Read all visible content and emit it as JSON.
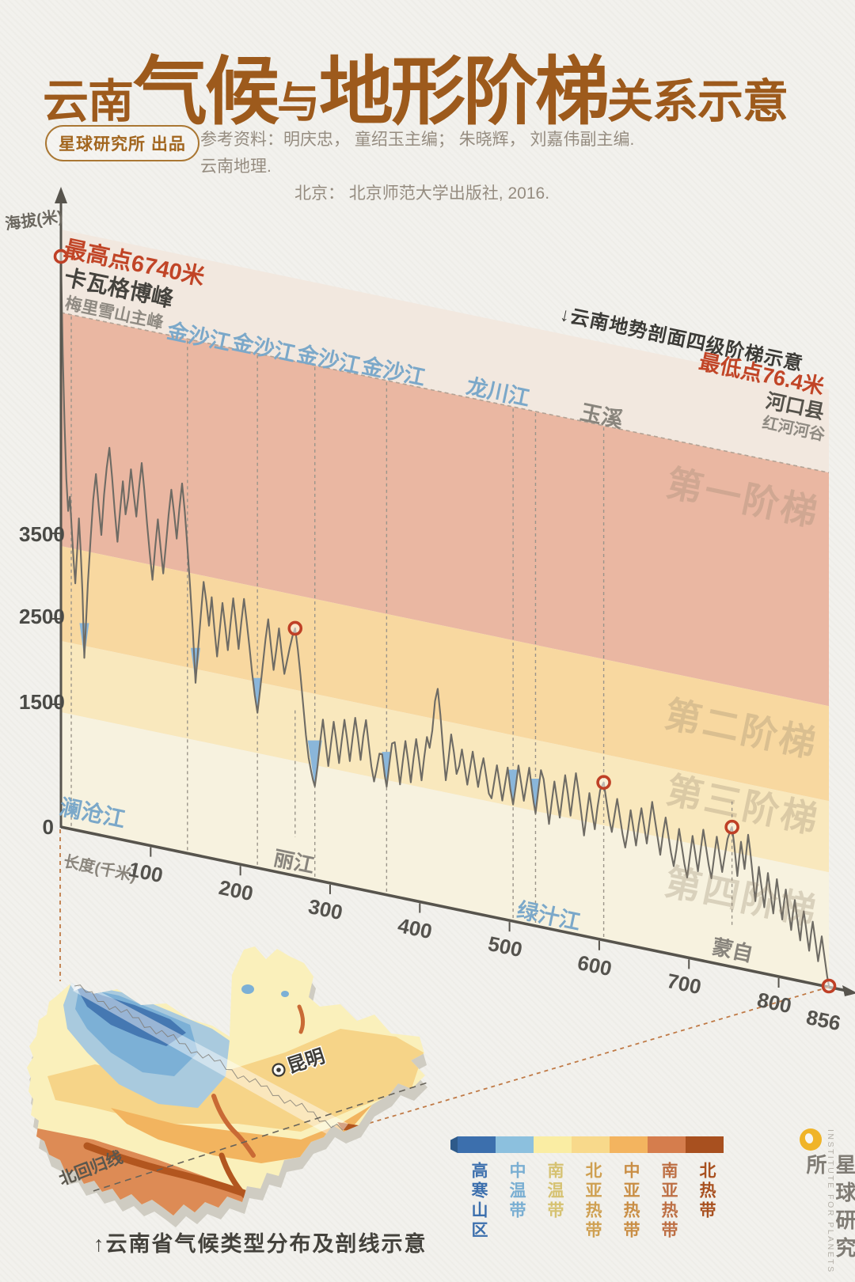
{
  "header": {
    "title_prefix": "云南",
    "title_big1": "气候",
    "title_mid": "与",
    "title_big2": "地形阶梯",
    "title_suffix": "关系示意",
    "badge": "星球研究所 出品",
    "ref_line1": "参考资料：明庆忠， 童绍玉主编； 朱晓辉， 刘嘉伟副主编. 云南地理.",
    "ref_line2": "北京： 北京师范大学出版社, 2016."
  },
  "chart": {
    "y_axis_label": "海拔(米)",
    "x_axis_label": "长度(千米)",
    "y_ticks": [
      "3500",
      "2500",
      "1500",
      "0"
    ],
    "x_ticks": [
      "100",
      "200",
      "300",
      "400",
      "500",
      "600",
      "700",
      "800",
      "856"
    ],
    "annotation": "↓云南地势剖面四级阶梯示意",
    "highest": {
      "value": "最高点6740米",
      "peak": "卡瓦格博峰",
      "sub": "梅里雪山主峰"
    },
    "lowest": {
      "value": "最低点76.4米",
      "place": "河口县",
      "sub": "红河河谷"
    },
    "steps": [
      "第一阶梯",
      "第二阶梯",
      "第三阶梯",
      "第四阶梯"
    ],
    "top_labels": [
      "金沙江",
      "金沙江",
      "金沙江",
      "金沙江",
      "龙川江",
      "玉溪"
    ],
    "inner_labels": [
      "澜沧江",
      "丽江",
      "绿汁江",
      "蒙自"
    ],
    "band_colors": {
      "strip": "#f2e8df",
      "step1": "#eab7a2",
      "step2": "#f8d8a0",
      "step3": "#f9e8bd",
      "step4": "#f7f2df"
    }
  },
  "chart_data": {
    "type": "line",
    "title": "云南地势剖面四级阶梯示意",
    "xlabel": "长度(千米)",
    "ylabel": "海拔(米)",
    "x_range": [
      0,
      856
    ],
    "y_tick_values": [
      0,
      1500,
      2500,
      3500
    ],
    "grid": false,
    "highest_point": {
      "km": 0,
      "elevation_m": 6740,
      "name": "卡瓦格博峰",
      "sub": "梅里雪山主峰"
    },
    "lowest_point": {
      "km": 856,
      "elevation_m": 76.4,
      "name": "河口县",
      "sub": "红河河谷"
    },
    "dashed_guides_km": [
      11.5,
      141,
      219,
      283,
      363,
      504,
      529,
      605
    ],
    "river_gorges": [
      {
        "name": "澜沧江",
        "km": 26,
        "elevation_m": 2100
      },
      {
        "name": "金沙江",
        "km": 150,
        "elevation_m": 2080
      },
      {
        "name": "金沙江",
        "km": 219,
        "elevation_m": 1880
      },
      {
        "name": "金沙江",
        "km": 283,
        "elevation_m": 1160,
        "big": true
      },
      {
        "name": "金沙江",
        "km": 363,
        "elevation_m": 1330
      },
      {
        "name": "龙川江",
        "km": 504,
        "elevation_m": 1430
      },
      {
        "name": "绿汁江",
        "km": 529,
        "elevation_m": 1380
      }
    ],
    "cities": [
      {
        "name": "丽江",
        "km": 261
      },
      {
        "name": "玉溪",
        "km": 605
      },
      {
        "name": "蒙自",
        "km": 748
      }
    ],
    "step_markers": [
      {
        "km": 0,
        "elevation_m": 6740
      },
      {
        "km": 261,
        "elevation_m": 2960
      },
      {
        "km": 605,
        "elevation_m": 1910
      },
      {
        "km": 748,
        "elevation_m": 1700
      },
      {
        "km": 856,
        "elevation_m": 76.4
      }
    ],
    "elevation_profile_km_m": [
      0,
      6740,
      2,
      5600,
      4,
      4800,
      6,
      4150,
      8,
      3780,
      10,
      3950,
      12,
      3580,
      14,
      3220,
      16,
      2950,
      18,
      3320,
      20,
      3720,
      22,
      3350,
      24,
      2850,
      26,
      2100,
      28,
      2520,
      30,
      2980,
      33,
      3500,
      36,
      3980,
      39,
      4280,
      42,
      3920,
      45,
      3580,
      48,
      4050,
      51,
      4380,
      54,
      4620,
      57,
      4280,
      60,
      3880,
      63,
      3540,
      66,
      3920,
      69,
      4260,
      72,
      3880,
      75,
      4080,
      78,
      4420,
      81,
      4140,
      84,
      3880,
      87,
      4220,
      90,
      4520,
      93,
      4200,
      96,
      3820,
      99,
      3480,
      102,
      3180,
      105,
      3560,
      108,
      3900,
      111,
      3580,
      114,
      3280,
      117,
      3620,
      120,
      3980,
      123,
      4280,
      126,
      4020,
      129,
      3720,
      132,
      4080,
      135,
      4380,
      138,
      4060,
      141,
      3640,
      144,
      3180,
      147,
      2680,
      150,
      2080,
      153,
      2500,
      156,
      2900,
      159,
      3280,
      162,
      3060,
      165,
      2780,
      168,
      3120,
      171,
      2760,
      174,
      2440,
      177,
      2760,
      180,
      3080,
      183,
      2820,
      186,
      2540,
      189,
      2860,
      192,
      3160,
      195,
      2880,
      198,
      2580,
      201,
      2900,
      204,
      3180,
      207,
      2920,
      210,
      2640,
      213,
      2340,
      216,
      2080,
      219,
      1880,
      222,
      2160,
      225,
      2460,
      228,
      2760,
      231,
      3000,
      234,
      2700,
      237,
      2420,
      240,
      2660,
      243,
      2920,
      246,
      2640,
      249,
      2400,
      252,
      2560,
      255,
      2720,
      258,
      2860,
      261,
      2960,
      264,
      2720,
      267,
      2420,
      270,
      2080,
      273,
      1740,
      276,
      1480,
      279,
      1320,
      281,
      1230,
      283,
      1160,
      286,
      1400,
      289,
      1700,
      292,
      1960,
      295,
      1690,
      298,
      1430,
      301,
      1700,
      304,
      1960,
      307,
      1740,
      310,
      1490,
      313,
      1760,
      316,
      2010,
      319,
      1790,
      322,
      1540,
      325,
      1810,
      328,
      2060,
      331,
      1840,
      334,
      1580,
      337,
      1860,
      340,
      2060,
      343,
      1790,
      346,
      1530,
      349,
      1360,
      352,
      1520,
      355,
      1700,
      358,
      1700,
      361,
      1450,
      363,
      1330,
      366,
      1600,
      369,
      1850,
      372,
      1870,
      375,
      1640,
      378,
      1390,
      381,
      1660,
      384,
      1910,
      387,
      1690,
      390,
      1440,
      393,
      1720,
      396,
      1960,
      399,
      1740,
      402,
      1490,
      405,
      1770,
      408,
      2010,
      411,
      1890,
      414,
      2100,
      417,
      2450,
      420,
      2600,
      423,
      2300,
      426,
      1900,
      429,
      1550,
      432,
      1800,
      435,
      2100,
      438,
      1900,
      441,
      1650,
      444,
      1750,
      447,
      1950,
      450,
      1750,
      453,
      1550,
      456,
      1750,
      459,
      1950,
      462,
      1750,
      465,
      1550,
      468,
      1750,
      471,
      1900,
      474,
      1700,
      477,
      1500,
      480,
      1450,
      483,
      1650,
      486,
      1850,
      489,
      1650,
      492,
      1450,
      495,
      1650,
      498,
      1850,
      501,
      1600,
      504,
      1430,
      507,
      1650,
      510,
      1900,
      513,
      1700,
      516,
      1500,
      519,
      1700,
      522,
      1900,
      525,
      1650,
      527,
      1500,
      529,
      1380,
      532,
      1650,
      535,
      1900,
      538,
      1800,
      541,
      1550,
      544,
      1290,
      547,
      1550,
      550,
      1800,
      553,
      1590,
      556,
      1390,
      559,
      1650,
      562,
      1900,
      565,
      1690,
      568,
      1440,
      571,
      1700,
      574,
      1950,
      577,
      1740,
      580,
      1490,
      583,
      1240,
      586,
      1500,
      589,
      1750,
      592,
      1540,
      595,
      1340,
      598,
      1600,
      601,
      1810,
      605,
      1910,
      608,
      1700,
      611,
      1500,
      614,
      1350,
      617,
      1550,
      620,
      1750,
      623,
      1550,
      626,
      1350,
      629,
      1200,
      632,
      1400,
      635,
      1650,
      638,
      1450,
      641,
      1250,
      644,
      1500,
      647,
      1700,
      650,
      1500,
      653,
      1300,
      656,
      1550,
      659,
      1800,
      662,
      1600,
      665,
      1400,
      668,
      1200,
      671,
      1450,
      674,
      1650,
      677,
      1450,
      680,
      1250,
      683,
      1100,
      686,
      1300,
      689,
      1550,
      692,
      1350,
      695,
      1150,
      698,
      1000,
      701,
      1250,
      704,
      1500,
      707,
      1300,
      710,
      1100,
      713,
      1350,
      716,
      1600,
      719,
      1400,
      722,
      1200,
      725,
      1050,
      728,
      1300,
      731,
      1550,
      734,
      1350,
      737,
      1150,
      740,
      1350,
      743,
      1550,
      746,
      1650,
      748,
      1700,
      750,
      1540,
      752,
      1340,
      754,
      1140,
      756,
      1350,
      758,
      1550,
      760,
      1400,
      762,
      1240,
      764,
      1450,
      766,
      1650,
      768,
      1490,
      770,
      1290,
      772,
      1090,
      774,
      890,
      776,
      1100,
      778,
      1300,
      780,
      1140,
      782,
      990,
      784,
      840,
      786,
      1050,
      788,
      1250,
      790,
      1090,
      792,
      940,
      794,
      790,
      796,
      1000,
      798,
      1200,
      800,
      1040,
      802,
      890,
      804,
      740,
      806,
      950,
      808,
      1100,
      810,
      940,
      812,
      790,
      814,
      640,
      816,
      850,
      818,
      1000,
      820,
      840,
      822,
      690,
      824,
      540,
      826,
      750,
      828,
      890,
      830,
      740,
      832,
      590,
      834,
      440,
      836,
      640,
      838,
      790,
      840,
      640,
      842,
      490,
      844,
      340,
      846,
      490,
      848,
      640,
      850,
      490,
      852,
      340,
      854,
      190,
      856,
      76.4
    ]
  },
  "map": {
    "kunming": "昆明",
    "tropic_line": "北回归线",
    "caption": "↑云南省气候类型分布及剖线示意"
  },
  "legend": {
    "zones": [
      {
        "label": "高寒山区",
        "color": "#3c6fad",
        "text_color": "#3c6fad"
      },
      {
        "label": "中温带",
        "color": "#8cc0de",
        "text_color": "#79aed2"
      },
      {
        "label": "南温带",
        "color": "#faeda3",
        "text_color": "#d6c272"
      },
      {
        "label": "北亚热带",
        "color": "#f8d98b",
        "text_color": "#cfa052"
      },
      {
        "label": "中亚热带",
        "color": "#f3b45f",
        "text_color": "#c98e45"
      },
      {
        "label": "南亚热带",
        "color": "#d57d4d",
        "text_color": "#bd6f44"
      },
      {
        "label": "北热带",
        "color": "#a8501f",
        "text_color": "#a8501f"
      }
    ]
  },
  "logo": {
    "cn": "星球研究所",
    "en": "INSTITUTE FOR PLANETS"
  }
}
